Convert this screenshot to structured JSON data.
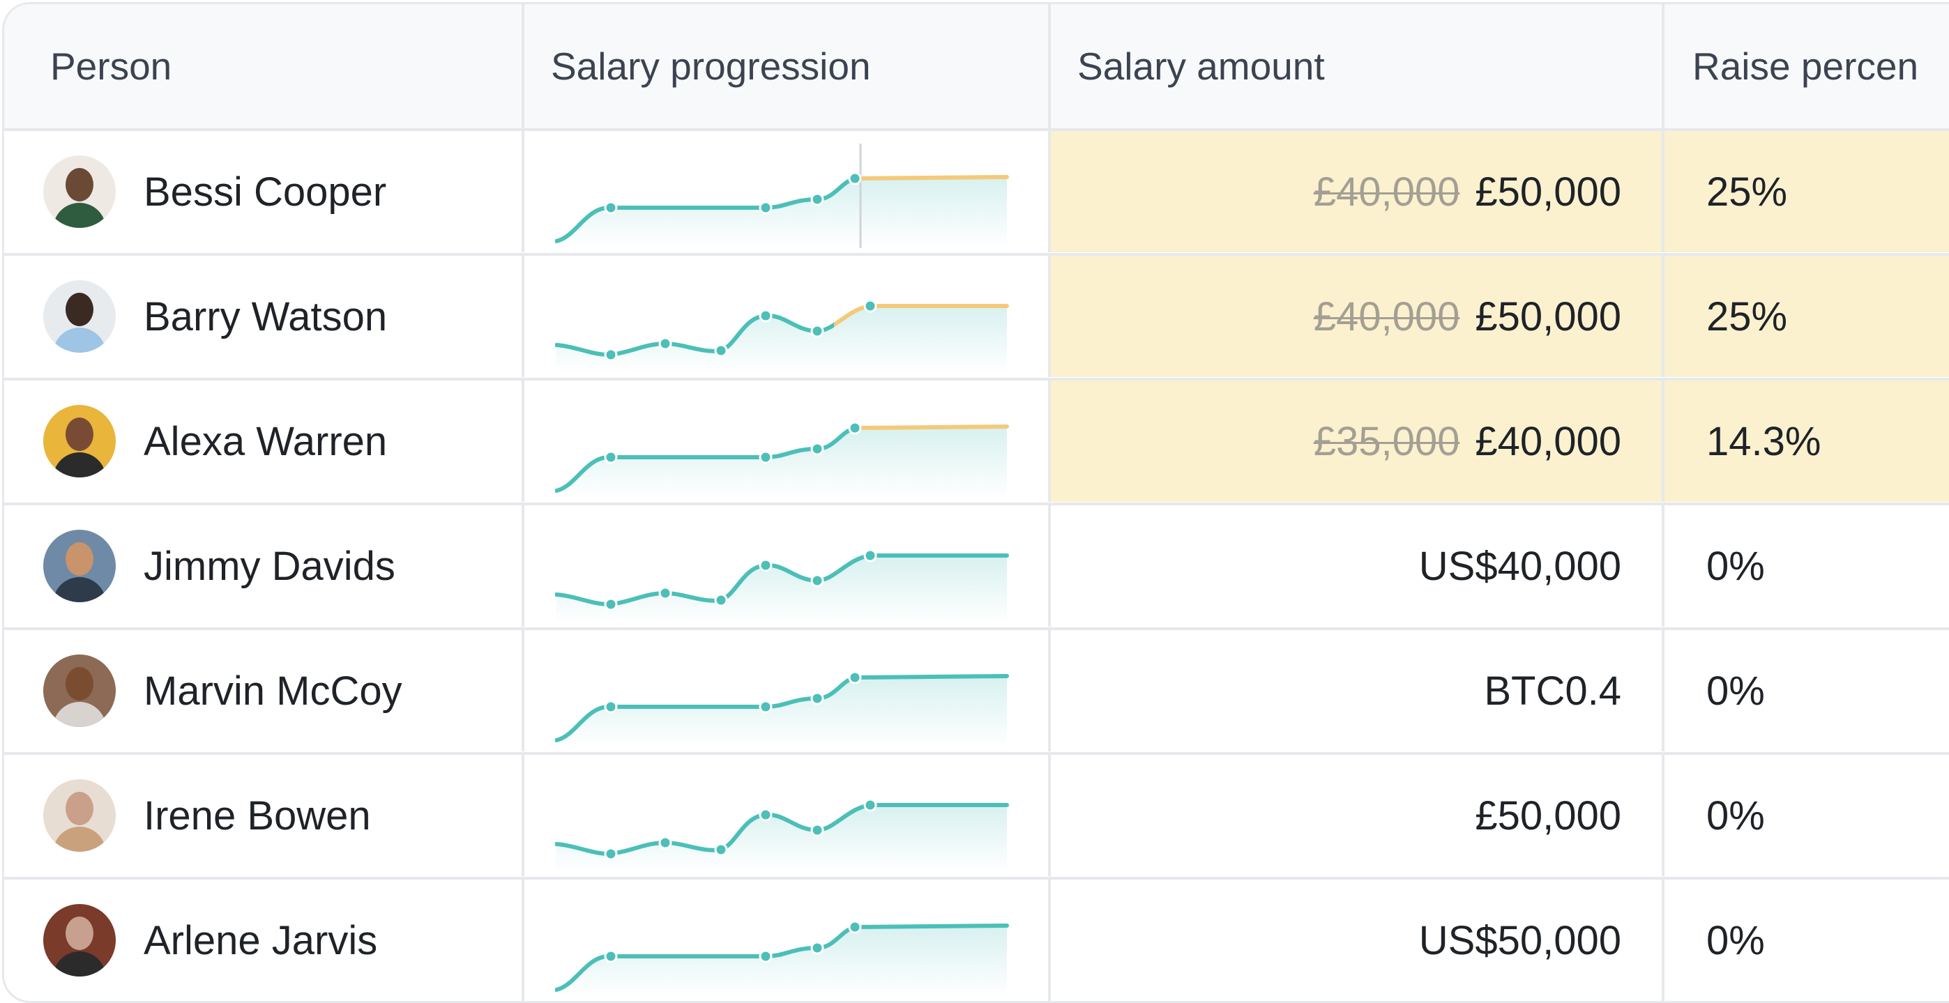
{
  "columns": {
    "person": "Person",
    "progression": "Salary progression",
    "amount": "Salary amount",
    "raise": "Raise percen"
  },
  "colors": {
    "line": "#4bbfb8",
    "raise_line": "#f5c97a",
    "highlight": "#fbf1cf"
  },
  "rows": [
    {
      "name": "Bessi Cooper",
      "old_amount": "£40,000",
      "amount": "£50,000",
      "raise": "25%",
      "highlighted": true,
      "curve": "A",
      "avatar": [
        "#2f5b3e",
        "#6b4a35",
        "#efe9e4"
      ]
    },
    {
      "name": "Barry Watson",
      "old_amount": "£40,000",
      "amount": "£50,000",
      "raise": "25%",
      "highlighted": true,
      "curve": "B",
      "avatar": [
        "#9ec4e6",
        "#3a2a22",
        "#e8ebee"
      ]
    },
    {
      "name": "Alexa Warren",
      "old_amount": "£35,000",
      "amount": "£40,000",
      "raise": "14.3%",
      "highlighted": true,
      "curve": "A",
      "avatar": [
        "#2b2b2b",
        "#7a4b34",
        "#e9b53b"
      ]
    },
    {
      "name": "Jimmy Davids",
      "old_amount": "",
      "amount": "US$40,000",
      "raise": "0%",
      "highlighted": false,
      "curve": "B",
      "avatar": [
        "#2e3b4a",
        "#c9936c",
        "#6f8aa6"
      ]
    },
    {
      "name": "Marvin McCoy",
      "old_amount": "",
      "amount": "BTC0.4",
      "raise": "0%",
      "highlighted": false,
      "curve": "A",
      "avatar": [
        "#d8d3ce",
        "#7b4d30",
        "#8c6a55"
      ]
    },
    {
      "name": "Irene Bowen",
      "old_amount": "",
      "amount": "£50,000",
      "raise": "0%",
      "highlighted": false,
      "curve": "B",
      "avatar": [
        "#c9a27d",
        "#caa08a",
        "#e8ddd2"
      ]
    },
    {
      "name": "Arlene Jarvis",
      "old_amount": "",
      "amount": "US$50,000",
      "raise": "0%",
      "highlighted": false,
      "curve": "A",
      "avatar": [
        "#2b2b2b",
        "#c8a090",
        "#7a3b2a"
      ]
    }
  ]
}
